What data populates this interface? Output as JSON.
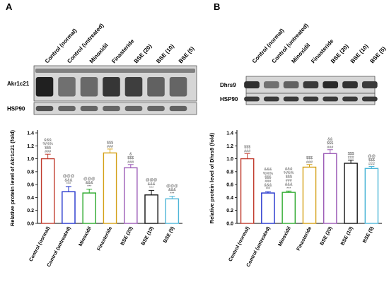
{
  "panels": [
    {
      "letter": "A",
      "blot_lanes": [
        "Control (normal)",
        "Control (untreated)",
        "Minoxidil",
        "Finasteride",
        "BSE (20)",
        "BSE (10)",
        "BSE (5)"
      ],
      "blots": [
        {
          "label": "Akr1c21",
          "intensity": [
            0.92,
            0.55,
            0.58,
            0.82,
            0.78,
            0.62,
            0.6
          ],
          "thick": true
        },
        {
          "label": "HSP90",
          "intensity": [
            0.7,
            0.6,
            0.6,
            0.6,
            0.6,
            0.6,
            0.62
          ],
          "thick": false
        }
      ],
      "chart_data": {
        "type": "bar",
        "categories": [
          "Control (normal)",
          "Control (untreated)",
          "Minoxidil",
          "Finasteride",
          "BSE (20)",
          "BSE (10)",
          "BSE (5)"
        ],
        "values": [
          1.0,
          0.49,
          0.47,
          1.09,
          0.86,
          0.44,
          0.38
        ],
        "errors": [
          0.07,
          0.08,
          0.06,
          0.06,
          0.05,
          0.07,
          0.04
        ],
        "colors": [
          "#c0392b",
          "#2233cc",
          "#2eaa2e",
          "#d4a017",
          "#9b59b6",
          "#111111",
          "#4db6d8"
        ],
        "ylabel": "Relative protein level of Akr1c21 (fold)",
        "ylim": [
          0,
          1.4
        ],
        "yticks": [
          0.0,
          0.2,
          0.4,
          0.6,
          0.8,
          1.0,
          1.2,
          1.4
        ],
        "annotations": [
          [
            "&&&",
            "%%%",
            "$$$",
            "###"
          ],
          [
            "@@@",
            "&&&",
            "***"
          ],
          [
            "@@@",
            "&&&",
            "***"
          ],
          [
            "$$$",
            "###"
          ],
          [
            "&",
            "$$$",
            "###"
          ],
          [
            "@@@",
            "&&&",
            "***"
          ],
          [
            "@@@",
            "&&&",
            "***"
          ]
        ]
      }
    },
    {
      "letter": "B",
      "blot_lanes": [
        "Control (normal)",
        "Control (untreated)",
        "Minoxidil",
        "Finasteride",
        "BSE (20)",
        "BSE (10)",
        "BSE (5)"
      ],
      "blots": [
        {
          "label": "Dhrs9",
          "intensity": [
            0.85,
            0.55,
            0.62,
            0.8,
            0.88,
            0.84,
            0.8
          ],
          "thick": false
        },
        {
          "label": "HSP90",
          "intensity": [
            0.8,
            0.8,
            0.8,
            0.8,
            0.8,
            0.8,
            0.8
          ],
          "thick": false
        }
      ],
      "chart_data": {
        "type": "bar",
        "categories": [
          "Control (normal)",
          "Control (untreated)",
          "Minoxidil",
          "Finasteride",
          "BSE (20)",
          "BSE (10)",
          "BSE (5)"
        ],
        "values": [
          1.0,
          0.47,
          0.48,
          0.87,
          1.08,
          0.93,
          0.85
        ],
        "errors": [
          0.08,
          0.02,
          0.02,
          0.04,
          0.06,
          0.05,
          0.03
        ],
        "colors": [
          "#c0392b",
          "#2233cc",
          "#2eaa2e",
          "#d4a017",
          "#9b59b6",
          "#111111",
          "#4db6d8"
        ],
        "ylabel": "Relative protein level of Dhrs9 (fold)",
        "ylim": [
          0,
          1.4
        ],
        "yticks": [
          0.0,
          0.2,
          0.4,
          0.6,
          0.8,
          1.0,
          1.2,
          1.4
        ],
        "annotations": [
          [
            "$$$",
            "###"
          ],
          [
            "&&&",
            "%%%",
            "$$$",
            "###",
            "&&&",
            "***"
          ],
          [
            "&&&",
            "%%%",
            "$$$",
            "###",
            "&&&",
            "***"
          ],
          [
            "$$$",
            "###"
          ],
          [
            "&&",
            "$$$",
            "###"
          ],
          [
            "$$$",
            "###"
          ],
          [
            "@@",
            "$$$",
            "###"
          ]
        ]
      }
    }
  ]
}
